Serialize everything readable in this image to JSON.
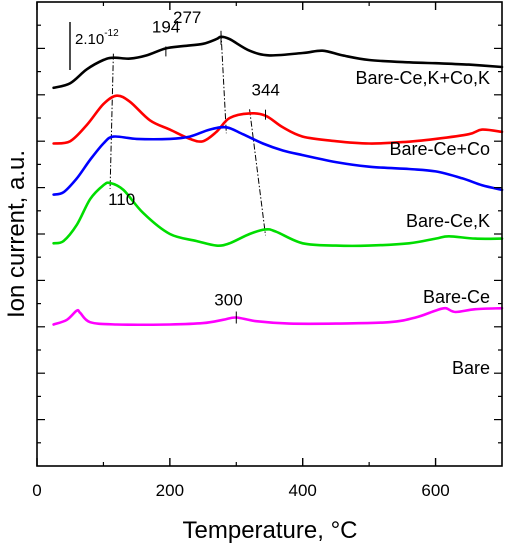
{
  "chart_data": {
    "type": "line",
    "title": "",
    "xlabel": "Temperature, °C",
    "ylabel": "Ion current, a.u.",
    "xlim": [
      0,
      700
    ],
    "xticks": [
      0,
      200,
      400,
      600
    ],
    "ylim": [
      0,
      10
    ],
    "y_tick_labels_shown": false,
    "grid": false,
    "scale_bar": {
      "base": "2.10",
      "exponent": "-12",
      "span_units": 1.0
    },
    "series": [
      {
        "name": "Bare-Ce,K+Co,K",
        "color": "#000000",
        "points": [
          [
            25,
            8.15
          ],
          [
            50,
            8.25
          ],
          [
            75,
            8.55
          ],
          [
            100,
            8.75
          ],
          [
            115,
            8.8
          ],
          [
            140,
            8.78
          ],
          [
            165,
            8.85
          ],
          [
            194,
            9.0
          ],
          [
            220,
            9.05
          ],
          [
            250,
            9.1
          ],
          [
            270,
            9.2
          ],
          [
            277,
            9.25
          ],
          [
            290,
            9.2
          ],
          [
            320,
            8.95
          ],
          [
            350,
            8.85
          ],
          [
            400,
            8.9
          ],
          [
            430,
            8.95
          ],
          [
            460,
            8.85
          ],
          [
            500,
            8.75
          ],
          [
            560,
            8.7
          ],
          [
            600,
            8.68
          ],
          [
            650,
            8.65
          ],
          [
            700,
            8.6
          ]
        ]
      },
      {
        "name": "Bare-Ce+Co",
        "color": "#ff0000",
        "points": [
          [
            25,
            6.95
          ],
          [
            50,
            7.0
          ],
          [
            75,
            7.35
          ],
          [
            100,
            7.8
          ],
          [
            120,
            7.98
          ],
          [
            140,
            7.85
          ],
          [
            170,
            7.45
          ],
          [
            200,
            7.25
          ],
          [
            230,
            7.05
          ],
          [
            250,
            7.0
          ],
          [
            270,
            7.2
          ],
          [
            290,
            7.5
          ],
          [
            320,
            7.6
          ],
          [
            344,
            7.55
          ],
          [
            370,
            7.3
          ],
          [
            400,
            7.1
          ],
          [
            450,
            7.0
          ],
          [
            500,
            6.95
          ],
          [
            550,
            6.98
          ],
          [
            600,
            7.05
          ],
          [
            650,
            7.15
          ],
          [
            670,
            7.25
          ],
          [
            700,
            7.2
          ]
        ]
      },
      {
        "name": "Bare-Ce,K",
        "color": "#0000ff",
        "points": [
          [
            25,
            5.85
          ],
          [
            40,
            5.9
          ],
          [
            60,
            6.2
          ],
          [
            80,
            6.6
          ],
          [
            100,
            6.95
          ],
          [
            115,
            7.1
          ],
          [
            150,
            7.05
          ],
          [
            200,
            7.05
          ],
          [
            230,
            7.1
          ],
          [
            260,
            7.25
          ],
          [
            285,
            7.3
          ],
          [
            310,
            7.15
          ],
          [
            340,
            6.95
          ],
          [
            370,
            6.8
          ],
          [
            400,
            6.7
          ],
          [
            450,
            6.55
          ],
          [
            500,
            6.45
          ],
          [
            560,
            6.4
          ],
          [
            600,
            6.35
          ],
          [
            640,
            6.2
          ],
          [
            670,
            6.05
          ],
          [
            700,
            5.95
          ]
        ]
      },
      {
        "name": "Bare-Ce",
        "color": "#00dd00",
        "points": [
          [
            25,
            4.8
          ],
          [
            40,
            4.85
          ],
          [
            60,
            5.2
          ],
          [
            80,
            5.75
          ],
          [
            100,
            6.05
          ],
          [
            110,
            6.1
          ],
          [
            130,
            5.95
          ],
          [
            160,
            5.45
          ],
          [
            200,
            5.0
          ],
          [
            240,
            4.85
          ],
          [
            270,
            4.75
          ],
          [
            290,
            4.8
          ],
          [
            320,
            5.0
          ],
          [
            344,
            5.1
          ],
          [
            360,
            5.05
          ],
          [
            400,
            4.8
          ],
          [
            450,
            4.75
          ],
          [
            500,
            4.75
          ],
          [
            560,
            4.8
          ],
          [
            600,
            4.9
          ],
          [
            620,
            4.95
          ],
          [
            660,
            4.9
          ],
          [
            700,
            4.9
          ]
        ]
      },
      {
        "name": "Bare",
        "color": "#ff00ff",
        "points": [
          [
            25,
            3.05
          ],
          [
            45,
            3.15
          ],
          [
            60,
            3.35
          ],
          [
            65,
            3.3
          ],
          [
            80,
            3.1
          ],
          [
            120,
            3.05
          ],
          [
            200,
            3.05
          ],
          [
            250,
            3.08
          ],
          [
            280,
            3.15
          ],
          [
            300,
            3.2
          ],
          [
            330,
            3.12
          ],
          [
            380,
            3.07
          ],
          [
            450,
            3.07
          ],
          [
            530,
            3.1
          ],
          [
            570,
            3.2
          ],
          [
            600,
            3.35
          ],
          [
            615,
            3.4
          ],
          [
            630,
            3.32
          ],
          [
            660,
            3.38
          ],
          [
            700,
            3.4
          ]
        ]
      }
    ],
    "annotations": [
      {
        "text": "194",
        "x": 194,
        "y": 9.0
      },
      {
        "text": "277",
        "x": 277,
        "y": 9.25
      },
      {
        "text": "344",
        "x": 344,
        "y": 7.55
      },
      {
        "text": "110",
        "x": 110,
        "y": 6.1
      },
      {
        "text": "300",
        "x": 300,
        "y": 3.2
      }
    ],
    "guide_lines": [
      [
        [
          115,
          8.8
        ],
        [
          110,
          6.1
        ]
      ],
      [
        [
          277,
          9.25
        ],
        [
          285,
          7.3
        ]
      ],
      [
        [
          320,
          7.6
        ],
        [
          344,
          5.1
        ]
      ]
    ],
    "series_labels": [
      {
        "text": "Bare-Ce,K+Co,K",
        "series": 0
      },
      {
        "text": "Bare-Ce+Co",
        "series": 1
      },
      {
        "text": "Bare-Ce,K",
        "series": 2
      },
      {
        "text": "Bare-Ce",
        "series": 3
      },
      {
        "text": "Bare",
        "series": 4
      }
    ]
  }
}
